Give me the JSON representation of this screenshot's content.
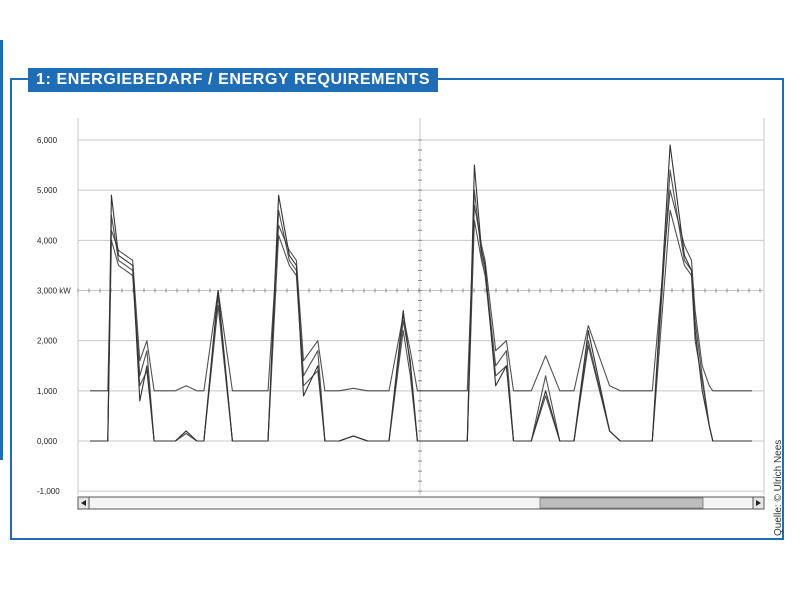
{
  "title": "1: ENERGIEBEDARF / ENERGY REQUIREMENTS",
  "credit": "Quelle: © Ulrich Nees",
  "colors": {
    "accent": "#1f6db4",
    "line": "#333333",
    "grid": "#c8c8c8"
  },
  "chart_data": {
    "type": "line",
    "title": "1: ENERGIEBEDARF / ENERGY REQUIREMENTS",
    "xlabel": "",
    "ylabel": "",
    "unit_label": "kW",
    "ylim": [
      -1.0,
      6.2
    ],
    "yticks": [
      6.0,
      5.0,
      4.0,
      3.0,
      2.0,
      1.0,
      0.0,
      -1.0
    ],
    "ytick_labels": [
      "6,000",
      "5,000",
      "4,000",
      "3,000 kW",
      "2,000",
      "1,000",
      "0,000",
      "-1,000"
    ],
    "grid": true,
    "x": [
      0,
      5,
      6,
      8,
      12,
      14,
      16,
      18,
      20,
      24,
      27,
      30,
      32,
      36,
      40,
      42,
      45,
      48,
      50,
      53,
      56,
      58,
      60,
      64,
      66,
      67,
      70,
      74,
      78,
      84,
      88,
      90,
      92,
      93,
      95,
      98,
      100,
      102,
      106,
      108,
      110,
      111,
      114,
      117,
      119,
      121,
      124,
      128,
      132,
      135,
      136,
      140,
      146,
      149,
      150,
      151,
      153,
      155,
      158,
      163,
      167,
      169,
      170,
      172,
      174,
      175,
      176,
      178,
      182,
      186
    ],
    "series": [
      {
        "values": [
          0,
          0,
          4.9,
          3.7,
          3.5,
          0.8,
          1.5,
          0,
          0,
          0,
          0.2,
          0,
          0,
          3.0,
          0,
          0,
          0,
          0,
          0,
          4.9,
          3.7,
          3.5,
          0.9,
          1.5,
          0,
          0,
          0,
          0.1,
          0,
          0,
          2.6,
          1.5,
          0,
          0,
          0,
          0,
          0,
          0,
          0,
          5.5,
          3.8,
          3.5,
          1.1,
          1.5,
          0,
          0,
          0,
          1.0,
          0,
          0,
          0,
          2.2,
          0.2,
          0,
          0,
          0,
          0,
          0,
          0,
          5.9,
          3.7,
          3.4,
          2.2,
          1.0,
          0.3,
          0,
          0,
          0,
          0,
          0
        ]
      },
      {
        "values": [
          0,
          0,
          4.5,
          3.6,
          3.4,
          1.3,
          1.8,
          0,
          0,
          0,
          0.15,
          0,
          0,
          2.9,
          0,
          0,
          0,
          0,
          0,
          4.6,
          3.6,
          3.4,
          1.3,
          1.8,
          0,
          0,
          0,
          0.1,
          0,
          0,
          2.4,
          1.6,
          0,
          0,
          0,
          0,
          0,
          0,
          0,
          5.0,
          3.7,
          3.4,
          1.5,
          1.8,
          0,
          0,
          0,
          1.3,
          0,
          0,
          0,
          1.9,
          0.2,
          0,
          0,
          0,
          0,
          0,
          0,
          5.4,
          3.6,
          3.4,
          2.4,
          1.3,
          0.3,
          0,
          0,
          0,
          0,
          0
        ]
      },
      {
        "values": [
          1.0,
          1.0,
          4.2,
          3.8,
          3.6,
          1.6,
          2.0,
          1.0,
          1.0,
          1.0,
          1.1,
          1.0,
          1.0,
          3.0,
          1.0,
          1.0,
          1.0,
          1.0,
          1.0,
          4.3,
          3.8,
          3.6,
          1.6,
          2.0,
          1.0,
          1.0,
          1.0,
          1.05,
          1.0,
          1.0,
          2.5,
          1.8,
          1.0,
          1.0,
          1.0,
          1.0,
          1.0,
          1.0,
          1.0,
          4.7,
          3.9,
          3.6,
          1.8,
          2.0,
          1.0,
          1.0,
          1.0,
          1.7,
          1.0,
          1.0,
          1.0,
          2.3,
          1.1,
          1.0,
          1.0,
          1.0,
          1.0,
          1.0,
          1.0,
          5.0,
          3.9,
          3.6,
          2.6,
          1.5,
          1.1,
          1.0,
          1.0,
          1.0,
          1.0,
          1.0
        ]
      },
      {
        "values": [
          0,
          0,
          4.0,
          3.5,
          3.3,
          1.1,
          1.4,
          0,
          0,
          0,
          0.2,
          0,
          0,
          2.7,
          0,
          0,
          0,
          0,
          0,
          4.1,
          3.5,
          3.3,
          1.1,
          1.4,
          0,
          0,
          0,
          0.1,
          0,
          0,
          2.2,
          1.3,
          0,
          0,
          0,
          0,
          0,
          0,
          0,
          4.4,
          3.6,
          3.3,
          1.3,
          1.5,
          0,
          0,
          0,
          0.9,
          0,
          0,
          0,
          2.0,
          0.2,
          0,
          0,
          0,
          0,
          0,
          0,
          4.6,
          3.5,
          3.3,
          2.0,
          1.2,
          0.3,
          0,
          0,
          0,
          0,
          0
        ]
      }
    ]
  }
}
